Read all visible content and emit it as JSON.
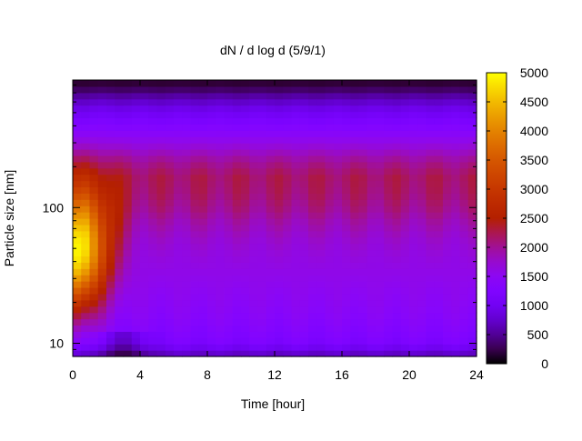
{
  "chart_data": {
    "type": "heatmap",
    "title": "dN / d log d (5/9/1)",
    "xlabel": "Time [hour]",
    "ylabel": "Particle size [nm]",
    "x_ticks": [
      "0",
      "4",
      "8",
      "12",
      "16",
      "20",
      "24"
    ],
    "x_tick_values": [
      0,
      4,
      8,
      12,
      16,
      20,
      24
    ],
    "y_ticks": [
      "10",
      "100"
    ],
    "y_tick_values": [
      10,
      100
    ],
    "y_scale": "log",
    "xlim": [
      0,
      24
    ],
    "ylim": [
      8,
      870
    ],
    "colorbar": {
      "ticks": [
        "0",
        "500",
        "1000",
        "1500",
        "2000",
        "2500",
        "3000",
        "3500",
        "4000",
        "4500",
        "5000"
      ],
      "tick_values": [
        0,
        500,
        1000,
        1500,
        2000,
        2500,
        3000,
        3500,
        4000,
        4500,
        5000
      ],
      "range": [
        0,
        5000
      ],
      "colormap": "gnuplot-pm3d-black-purple-red-yellow"
    },
    "grid": false,
    "size_profile": {
      "size_nm": [
        8,
        10,
        12,
        15,
        18,
        22,
        28,
        35,
        45,
        60,
        80,
        100,
        130,
        170,
        220,
        280,
        360,
        450,
        550,
        650,
        750,
        870
      ],
      "mean_concentration": [
        600,
        1200,
        1300,
        1400,
        1450,
        1500,
        1550,
        1600,
        1650,
        1750,
        1900,
        2050,
        2150,
        2200,
        2000,
        1700,
        1400,
        1150,
        900,
        600,
        300,
        100
      ]
    },
    "early_event": {
      "hours": [
        0,
        3.5
      ],
      "peak_size_nm": 45,
      "peak_concentration": 4700
    }
  }
}
